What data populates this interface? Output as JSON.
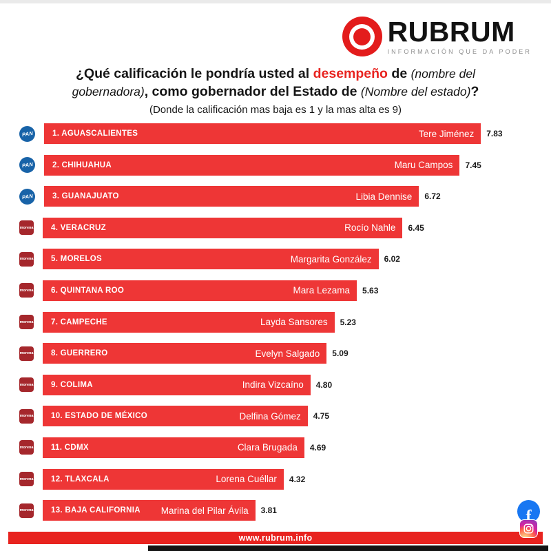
{
  "logo": {
    "brand": "RUBRUM",
    "tagline": "INFORMACIÓN QUE DA PODER"
  },
  "title": {
    "l1s1": "¿Qué calificación le pondría usted al ",
    "l1s2": "desempeño",
    "l1s3": " de ",
    "l1s4": "(nombre del",
    "l2s1": "gobernadora)",
    "l2s2": ", como gobernador del Estado de ",
    "l2s3": "(Nombre del estado)",
    "l2s4": "?",
    "note": "(Donde la calificación mas baja es 1 y la mas alta es 9)"
  },
  "chart_data": {
    "type": "bar",
    "orientation": "horizontal",
    "title": "¿Qué calificación le pondría usted al desempeño de (nombre del gobernadora), como gobernador del Estado de (Nombre del estado)?",
    "subtitle": "(Donde la calificación mas baja es 1 y la mas alta es 9)",
    "value_scale": [
      1,
      9
    ],
    "rows": [
      {
        "rank": 1,
        "state": "AGUASCALIENTES",
        "governor": "Tere Jiménez",
        "score": "7.83",
        "party": "PAN"
      },
      {
        "rank": 2,
        "state": "CHIHUAHUA",
        "governor": "Maru Campos",
        "score": "7.45",
        "party": "PAN"
      },
      {
        "rank": 3,
        "state": "GUANAJUATO",
        "governor": "Libia Dennise",
        "score": "6.72",
        "party": "PAN"
      },
      {
        "rank": 4,
        "state": "VERACRUZ",
        "governor": "Rocío Nahle",
        "score": "6.45",
        "party": "MORENA"
      },
      {
        "rank": 5,
        "state": "MORELOS",
        "governor": "Margarita González",
        "score": "6.02",
        "party": "MORENA"
      },
      {
        "rank": 6,
        "state": "QUINTANA ROO",
        "governor": "Mara Lezama",
        "score": "5.63",
        "party": "MORENA"
      },
      {
        "rank": 7,
        "state": "CAMPECHE",
        "governor": "Layda Sansores",
        "score": "5.23",
        "party": "MORENA"
      },
      {
        "rank": 8,
        "state": "GUERRERO",
        "governor": "Evelyn Salgado",
        "score": "5.09",
        "party": "MORENA"
      },
      {
        "rank": 9,
        "state": "COLIMA",
        "governor": "Indira Vizcaíno",
        "score": "4.80",
        "party": "MORENA"
      },
      {
        "rank": 10,
        "state": "ESTADO DE MÉXICO",
        "governor": "Delfina Gómez",
        "score": "4.75",
        "party": "MORENA"
      },
      {
        "rank": 11,
        "state": "CDMX",
        "governor": "Clara Brugada",
        "score": "4.69",
        "party": "MORENA"
      },
      {
        "rank": 12,
        "state": "TLAXCALA",
        "governor": "Lorena Cuéllar",
        "score": "4.32",
        "party": "MORENA"
      },
      {
        "rank": 13,
        "state": "BAJA CALIFORNIA",
        "governor": "Marina del Pilar Ávila",
        "score": "3.81",
        "party": "MORENA"
      }
    ]
  },
  "party_labels": {
    "pan": "PAN",
    "morena": "morena"
  },
  "footer": {
    "url": "www.rubrum.info"
  },
  "colors": {
    "bar_red": "#ee3636",
    "accent_red": "#e8231f",
    "logo_red": "#e31c1c",
    "pan_blue": "#1863a8",
    "morena_maroon": "#a5272c",
    "facebook_blue": "#1877f2",
    "tagline_gray": "#8e8e8e"
  }
}
